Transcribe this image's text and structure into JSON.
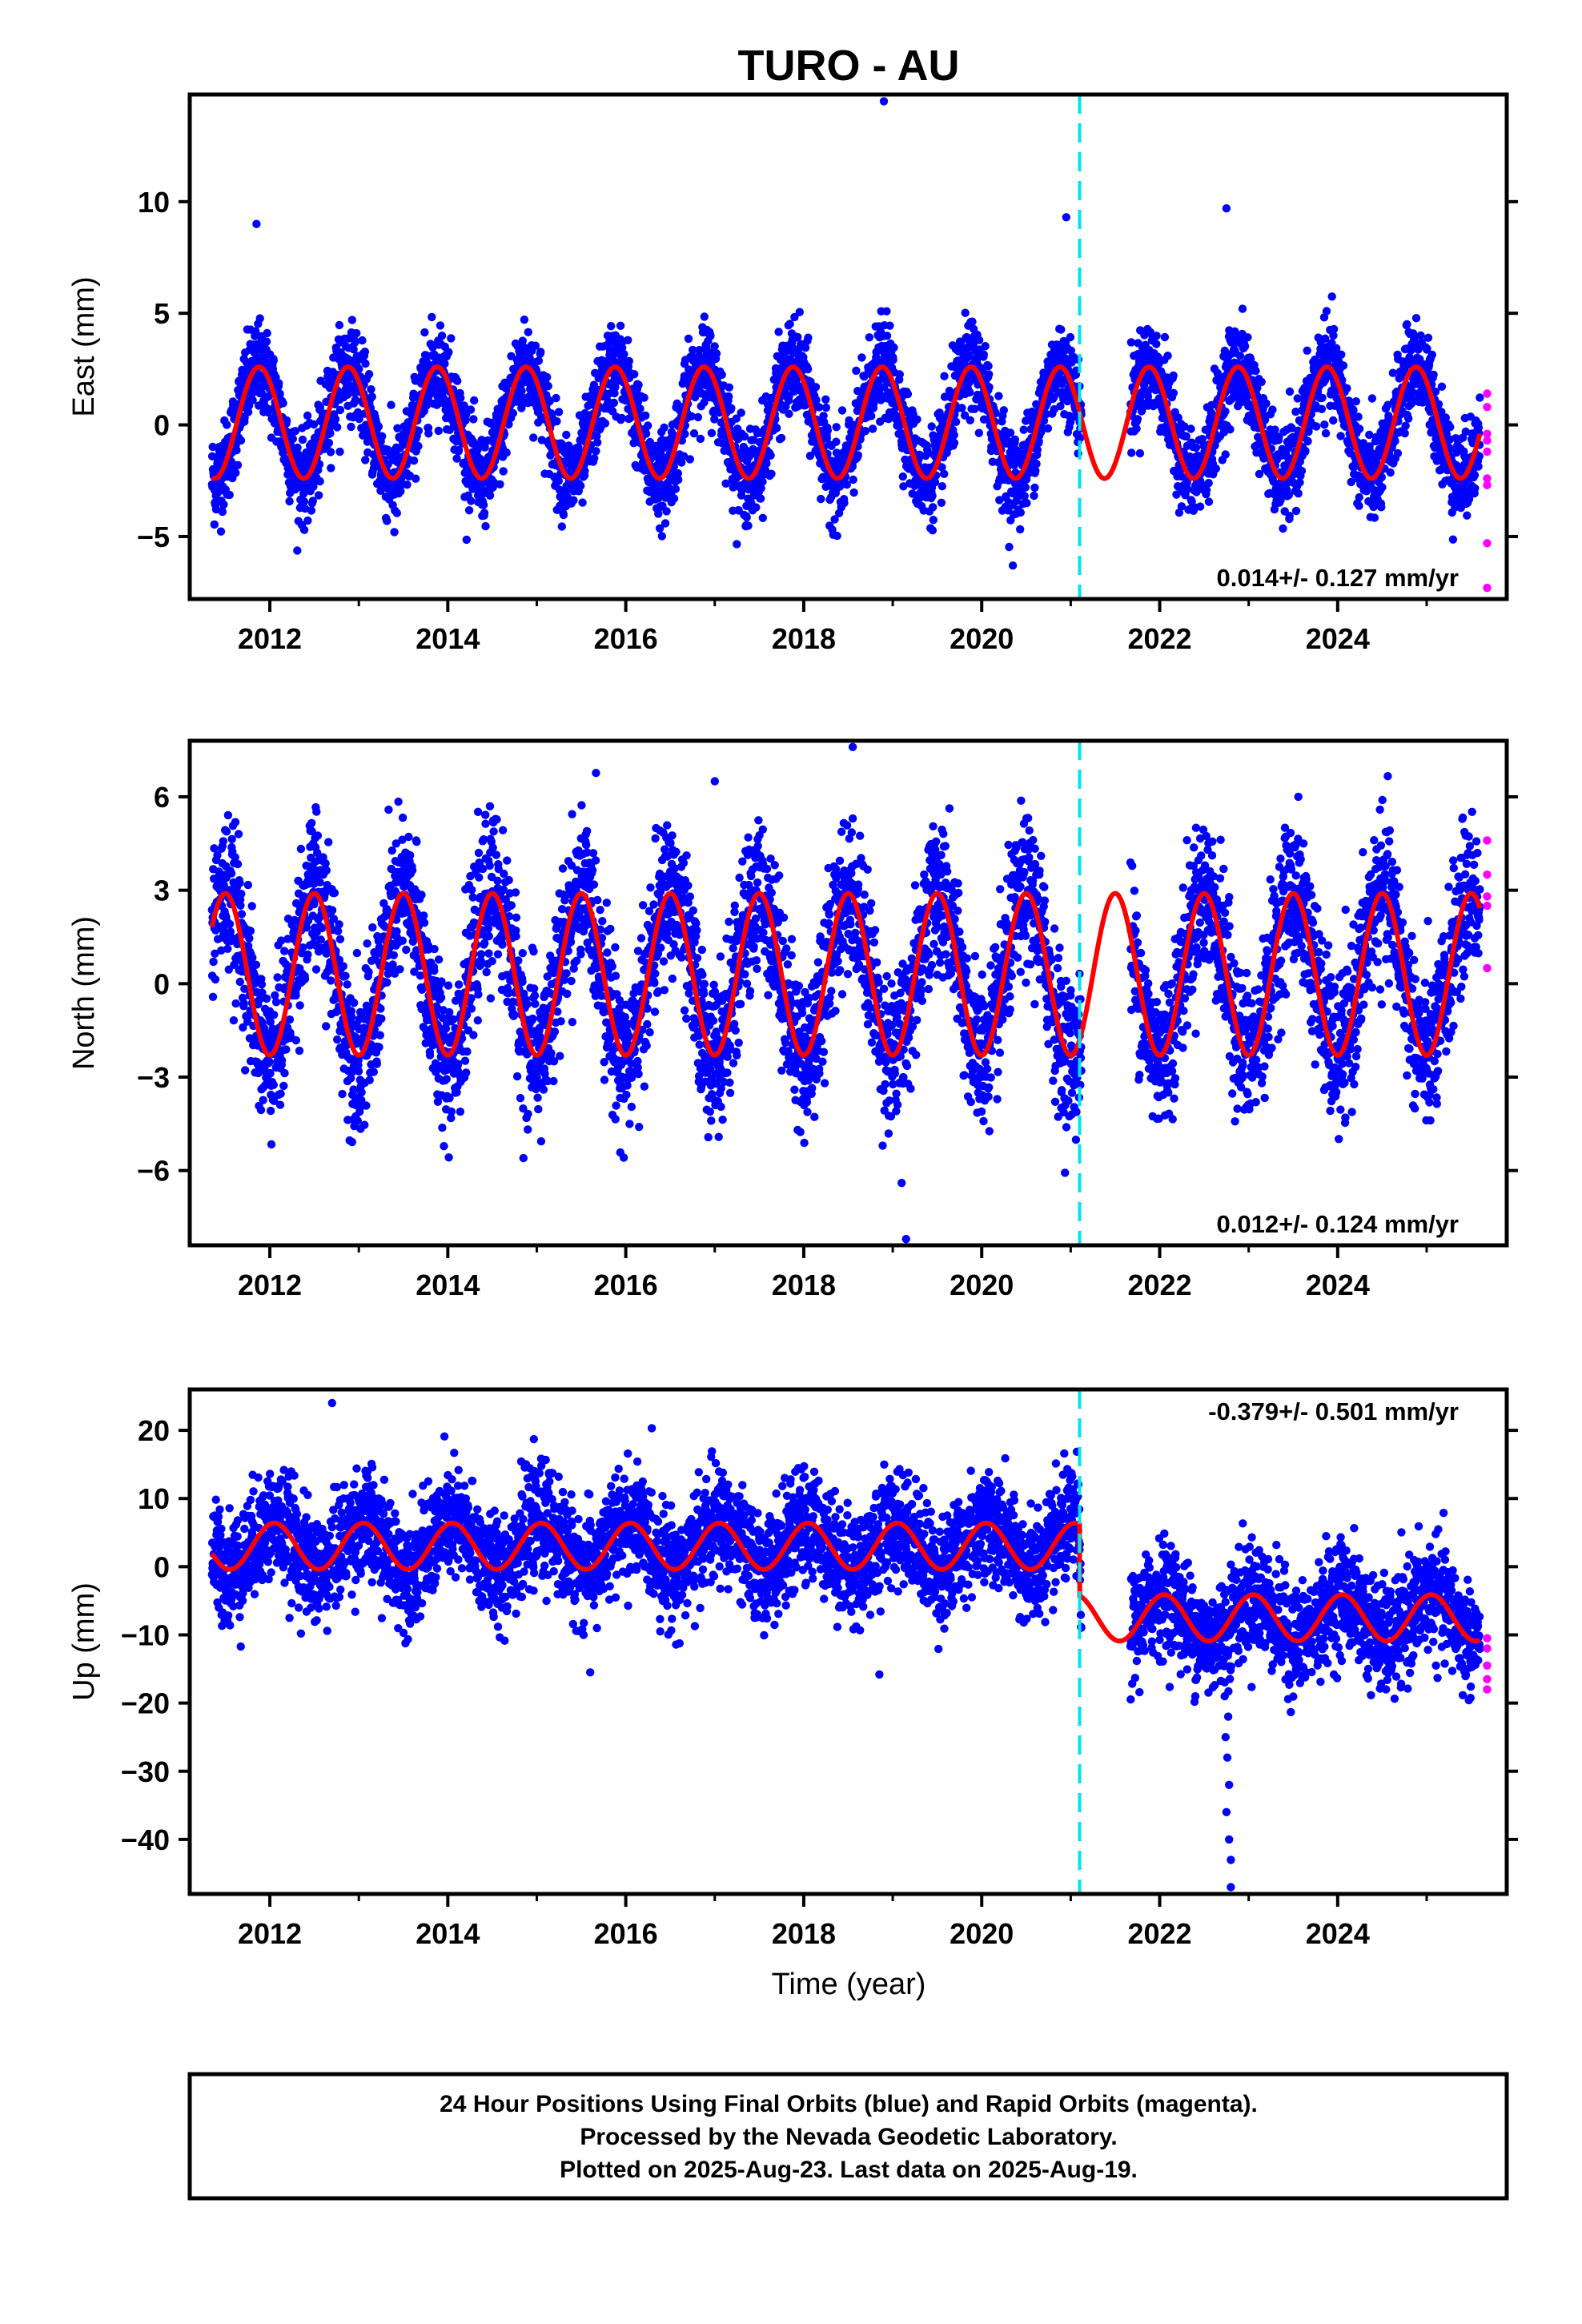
{
  "title": "TURO - AU",
  "xlabel": "Time (year)",
  "footer": {
    "lines": [
      "24 Hour Positions Using Final Orbits (blue) and Rapid Orbits (magenta).",
      "Processed by the Nevada Geodetic Laboratory.",
      "Plotted on 2025-Aug-23. Last data on 2025-Aug-19."
    ]
  },
  "colors": {
    "final_orbits": "#0000ff",
    "rapid_orbits": "#ff00ff",
    "model": "#ff0000",
    "offset_line": "#00e5ee"
  },
  "chart_data": [
    {
      "type": "scatter",
      "panel": "east",
      "ylabel": "East (mm)",
      "xlim": [
        2011.1,
        2025.9
      ],
      "ylim": [
        -7.8,
        14.8
      ],
      "yticks": [
        -5,
        0,
        5,
        10
      ],
      "xticks": [
        2012,
        2014,
        2016,
        2018,
        2020,
        2022,
        2024
      ],
      "rate_text": "0.014+/- 0.127 mm/yr",
      "rate_position": "bottom-right",
      "offset_epoch": 2021.1,
      "data_range": [
        2011.35,
        2025.6
      ],
      "data_gap": [
        2021.12,
        2021.67
      ],
      "model": {
        "offset": 0.1,
        "amplitude": 2.5,
        "phase_peak": 0.88,
        "scatter": 1.0,
        "step_at_offset": 0,
        "semiannual": 0.0
      },
      "series": [
        {
          "name": "Final Orbits (blue)",
          "style": "points"
        },
        {
          "name": "Rapid Orbits (magenta)",
          "style": "points",
          "values_y": [
            1.4,
            0.8,
            -0.4,
            -0.7,
            -1.2,
            -2.4,
            -2.7,
            -5.3,
            -7.3
          ]
        }
      ],
      "outliers": [
        [
          2018.9,
          14.5
        ],
        [
          2011.85,
          9.0
        ],
        [
          2020.95,
          9.3
        ],
        [
          2022.75,
          9.7
        ],
        [
          2020.35,
          -6.3
        ],
        [
          2013.4,
          -4.8
        ]
      ]
    },
    {
      "type": "scatter",
      "panel": "north",
      "ylabel": "North (mm)",
      "xlim": [
        2011.1,
        2025.9
      ],
      "ylim": [
        -8.4,
        7.8
      ],
      "yticks": [
        -6,
        -3,
        0,
        3,
        6
      ],
      "xticks": [
        2012,
        2014,
        2016,
        2018,
        2020,
        2022,
        2024
      ],
      "rate_text": "0.012+/- 0.124 mm/yr",
      "rate_position": "bottom-right",
      "offset_epoch": 2021.1,
      "data_range": [
        2011.35,
        2025.6
      ],
      "data_gap": [
        2021.12,
        2021.67
      ],
      "model": {
        "offset": 0.3,
        "amplitude": 2.6,
        "phase_peak": 0.5,
        "scatter": 1.2,
        "step_at_offset": 0,
        "semiannual": 0.0
      },
      "series": [
        {
          "name": "Final Orbits (blue)",
          "style": "points"
        },
        {
          "name": "Rapid Orbits (magenta)",
          "style": "points",
          "values_y": [
            4.6,
            3.5,
            2.8,
            2.5,
            0.5
          ]
        }
      ],
      "outliers": [
        [
          2018.55,
          7.6
        ],
        [
          2019.1,
          -6.4
        ],
        [
          2019.15,
          -8.2
        ],
        [
          2017.0,
          6.5
        ],
        [
          2014.85,
          -5.6
        ]
      ]
    },
    {
      "type": "scatter",
      "panel": "up",
      "ylabel": "Up (mm)",
      "xlim": [
        2011.1,
        2025.9
      ],
      "ylim": [
        -48.0,
        26.0
      ],
      "yticks": [
        -40,
        -30,
        -20,
        -10,
        0,
        10,
        20
      ],
      "xticks": [
        2012,
        2014,
        2016,
        2018,
        2020,
        2022,
        2024
      ],
      "rate_text": "-0.379+/- 0.501 mm/yr",
      "rate_position": "top-right",
      "offset_epoch": 2021.1,
      "data_range": [
        2011.35,
        2025.6
      ],
      "data_gap": [
        2021.12,
        2021.67
      ],
      "model": {
        "offset": 3.0,
        "amplitude": 3.4,
        "phase_peak": 0.05,
        "scatter": 4.0,
        "step_at_offset": -10.5,
        "semiannual": 0.0
      },
      "series": [
        {
          "name": "Final Orbits (blue)",
          "style": "points"
        },
        {
          "name": "Rapid Orbits (magenta)",
          "style": "points",
          "values_y": [
            -10.5,
            -12.0,
            -14.5,
            -16.5,
            -18.0
          ]
        }
      ],
      "outliers": [
        [
          2012.7,
          24.0
        ],
        [
          2022.8,
          -47.0
        ],
        [
          2022.8,
          -43.0
        ],
        [
          2022.78,
          -40.0
        ],
        [
          2022.75,
          -36.0
        ],
        [
          2022.78,
          -32.0
        ],
        [
          2022.76,
          -28.0
        ],
        [
          2022.74,
          -25.0
        ],
        [
          2022.77,
          -22.0
        ],
        [
          2022.73,
          -19.0
        ],
        [
          2015.6,
          -15.5
        ],
        [
          2018.85,
          -15.8
        ]
      ]
    }
  ]
}
